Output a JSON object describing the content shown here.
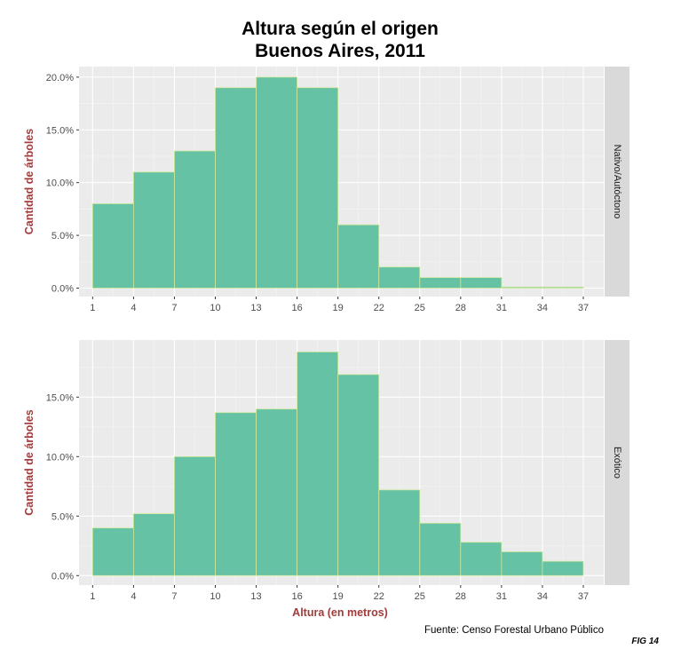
{
  "chart_data": {
    "type": "histogram",
    "title": [
      "Altura según el origen",
      "Buenos Aires, 2011"
    ],
    "xlabel": "Altura (en metros)",
    "ylabel": "Cantidad de árboles",
    "caption": "Fuente: Censo Forestal Urbano Público",
    "figure_label": "FIG 14",
    "x_ticks": [
      1,
      4,
      7,
      10,
      13,
      16,
      19,
      22,
      25,
      28,
      31,
      34,
      37
    ],
    "bin_edges": [
      1,
      4,
      7,
      10,
      13,
      16,
      19,
      22,
      25,
      28,
      31,
      34,
      37
    ],
    "xlim": [
      0,
      38.5
    ],
    "bar_fill": "#66c2a5",
    "bar_stroke": "#cde89a",
    "axis_label_color": "#a23b3b",
    "panel_bg": "#ebebeb",
    "strip_bg": "#d9d9d9",
    "grid": true,
    "facets": [
      {
        "name": "Nativo/Autóctono",
        "values": [
          8.0,
          11.0,
          13.0,
          19.0,
          20.0,
          19.0,
          6.0,
          2.0,
          1.0,
          1.0,
          0.1,
          0.1
        ],
        "ylim": [
          -0.8,
          21.0
        ],
        "y_ticks": [
          0,
          5,
          10,
          15,
          20
        ],
        "y_tick_labels": [
          "0.0%",
          "5.0%",
          "10.0%",
          "15.0%",
          "20.0%"
        ]
      },
      {
        "name": "Exótico",
        "values": [
          4.0,
          5.2,
          10.0,
          13.7,
          14.0,
          18.8,
          16.9,
          7.2,
          4.4,
          2.8,
          2.0,
          1.2
        ],
        "ylim": [
          -0.8,
          19.8
        ],
        "y_ticks": [
          0,
          5,
          10,
          15
        ],
        "y_tick_labels": [
          "0.0%",
          "5.0%",
          "10.0%",
          "15.0%"
        ]
      }
    ]
  }
}
